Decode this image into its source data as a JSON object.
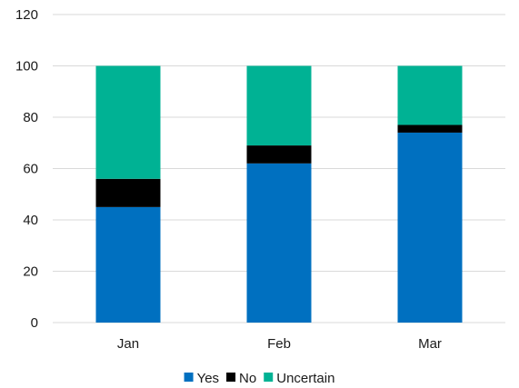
{
  "chart_data": {
    "type": "bar",
    "stacked": true,
    "categories": [
      "Jan",
      "Feb",
      "Mar"
    ],
    "series": [
      {
        "name": "Yes",
        "color": "#0070C0",
        "values": [
          45,
          62,
          74
        ]
      },
      {
        "name": "No",
        "color": "#000000",
        "values": [
          11,
          7,
          3
        ]
      },
      {
        "name": "Uncertain",
        "color": "#00B294",
        "values": [
          44,
          31,
          23
        ]
      }
    ],
    "ylim": [
      0,
      120
    ],
    "yticks": [
      0,
      20,
      40,
      60,
      80,
      100,
      120
    ],
    "grid": true,
    "legend_position": "bottom"
  }
}
